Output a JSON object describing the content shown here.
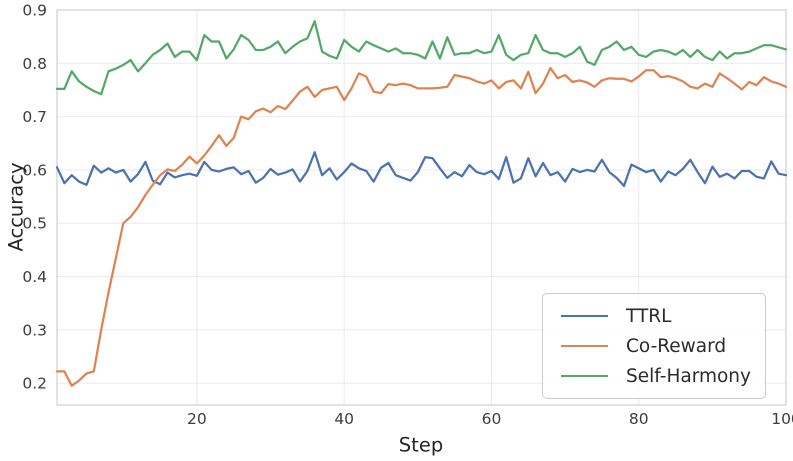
{
  "chart_data": {
    "type": "line",
    "xlabel": "Step",
    "ylabel": "Accuracy",
    "xlim": [
      1,
      100
    ],
    "ylim": [
      0.159,
      0.9
    ],
    "xticks": [
      20,
      40,
      60,
      80,
      100
    ],
    "yticks": [
      0.2,
      0.3,
      0.4,
      0.5,
      0.6,
      0.7,
      0.8,
      0.9
    ],
    "grid": true,
    "legend_position": "lower right",
    "series": [
      {
        "name": "TTRL",
        "color": "#4C72B0",
        "values": [
          0.605,
          0.575,
          0.59,
          0.578,
          0.572,
          0.608,
          0.595,
          0.603,
          0.595,
          0.6,
          0.578,
          0.592,
          0.615,
          0.58,
          0.573,
          0.595,
          0.586,
          0.59,
          0.593,
          0.589,
          0.615,
          0.6,
          0.597,
          0.602,
          0.605,
          0.592,
          0.598,
          0.576,
          0.585,
          0.602,
          0.591,
          0.595,
          0.601,
          0.578,
          0.598,
          0.633,
          0.59,
          0.603,
          0.582,
          0.596,
          0.612,
          0.603,
          0.598,
          0.578,
          0.604,
          0.613,
          0.59,
          0.585,
          0.58,
          0.596,
          0.624,
          0.622,
          0.603,
          0.585,
          0.596,
          0.588,
          0.609,
          0.596,
          0.592,
          0.598,
          0.583,
          0.624,
          0.576,
          0.584,
          0.622,
          0.588,
          0.613,
          0.59,
          0.596,
          0.578,
          0.602,
          0.596,
          0.6,
          0.597,
          0.619,
          0.596,
          0.585,
          0.57,
          0.61,
          0.603,
          0.596,
          0.6,
          0.578,
          0.597,
          0.59,
          0.602,
          0.619,
          0.596,
          0.575,
          0.606,
          0.587,
          0.593,
          0.584,
          0.598,
          0.598,
          0.587,
          0.584,
          0.616,
          0.593,
          0.59
        ]
      },
      {
        "name": "Co-Reward",
        "color": "#DD8452",
        "values": [
          0.222,
          0.222,
          0.195,
          0.205,
          0.218,
          0.222,
          0.3,
          0.37,
          0.435,
          0.5,
          0.512,
          0.53,
          0.553,
          0.572,
          0.59,
          0.601,
          0.598,
          0.61,
          0.625,
          0.612,
          0.627,
          0.645,
          0.665,
          0.645,
          0.66,
          0.7,
          0.695,
          0.71,
          0.715,
          0.708,
          0.72,
          0.714,
          0.73,
          0.747,
          0.756,
          0.737,
          0.75,
          0.753,
          0.756,
          0.731,
          0.753,
          0.781,
          0.775,
          0.747,
          0.744,
          0.761,
          0.759,
          0.762,
          0.759,
          0.753,
          0.753,
          0.753,
          0.754,
          0.756,
          0.778,
          0.775,
          0.772,
          0.766,
          0.762,
          0.768,
          0.753,
          0.765,
          0.768,
          0.753,
          0.784,
          0.744,
          0.762,
          0.791,
          0.772,
          0.778,
          0.765,
          0.768,
          0.764,
          0.756,
          0.768,
          0.772,
          0.771,
          0.771,
          0.766,
          0.775,
          0.787,
          0.787,
          0.774,
          0.776,
          0.772,
          0.766,
          0.756,
          0.753,
          0.762,
          0.756,
          0.781,
          0.772,
          0.762,
          0.751,
          0.765,
          0.759,
          0.774,
          0.766,
          0.762,
          0.756
        ]
      },
      {
        "name": "Self-Harmony",
        "color": "#55A868",
        "values": [
          0.752,
          0.752,
          0.785,
          0.766,
          0.756,
          0.748,
          0.742,
          0.785,
          0.79,
          0.797,
          0.806,
          0.785,
          0.8,
          0.816,
          0.825,
          0.837,
          0.812,
          0.822,
          0.822,
          0.806,
          0.853,
          0.841,
          0.841,
          0.809,
          0.826,
          0.853,
          0.844,
          0.825,
          0.825,
          0.831,
          0.841,
          0.819,
          0.831,
          0.841,
          0.847,
          0.879,
          0.822,
          0.814,
          0.809,
          0.844,
          0.831,
          0.822,
          0.841,
          0.834,
          0.828,
          0.822,
          0.828,
          0.819,
          0.819,
          0.816,
          0.809,
          0.841,
          0.809,
          0.849,
          0.816,
          0.819,
          0.819,
          0.825,
          0.819,
          0.822,
          0.853,
          0.816,
          0.806,
          0.816,
          0.819,
          0.853,
          0.825,
          0.819,
          0.819,
          0.812,
          0.819,
          0.831,
          0.803,
          0.797,
          0.825,
          0.831,
          0.841,
          0.825,
          0.831,
          0.816,
          0.812,
          0.822,
          0.825,
          0.822,
          0.816,
          0.825,
          0.812,
          0.825,
          0.812,
          0.806,
          0.822,
          0.809,
          0.819,
          0.819,
          0.822,
          0.828,
          0.834,
          0.834,
          0.83,
          0.826
        ]
      }
    ]
  },
  "colors": {
    "gridline": "#ebebf2",
    "spine": "#cfcfd6",
    "tick_text": "#3d3d3d",
    "axis_label_text": "#262626",
    "legend_border": "#cccccc"
  }
}
